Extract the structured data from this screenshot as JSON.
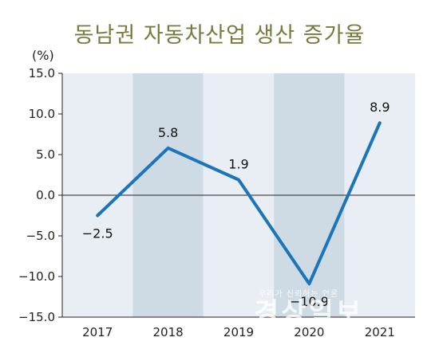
{
  "chart_data": {
    "type": "line",
    "title": "동남권 자동차산업 생산 증가율",
    "ylabel": "(%)",
    "xlabel": "",
    "categories": [
      "2017",
      "2018",
      "2019",
      "2020",
      "2021"
    ],
    "series": [
      {
        "values": [
          -2.5,
          5.8,
          1.9,
          -10.9,
          8.9
        ]
      }
    ],
    "data_labels": [
      "-2.5",
      "5.8",
      "1.9",
      "-10.9",
      "8.9"
    ],
    "ylim": [
      -15.0,
      15.0
    ],
    "yticks": [
      "15.0",
      "10.0",
      "5.0",
      "0.0",
      "-5.0",
      "-10.0",
      "-15.0"
    ],
    "grid": false,
    "colors": {
      "line": "#1b75bb",
      "band_light": "#e8eef3",
      "band_dark": "#cfdbe4",
      "title": "#7b7a3e"
    }
  },
  "watermark": {
    "small": "우리가 신뢰하는 언론",
    "big": "경상일보"
  }
}
